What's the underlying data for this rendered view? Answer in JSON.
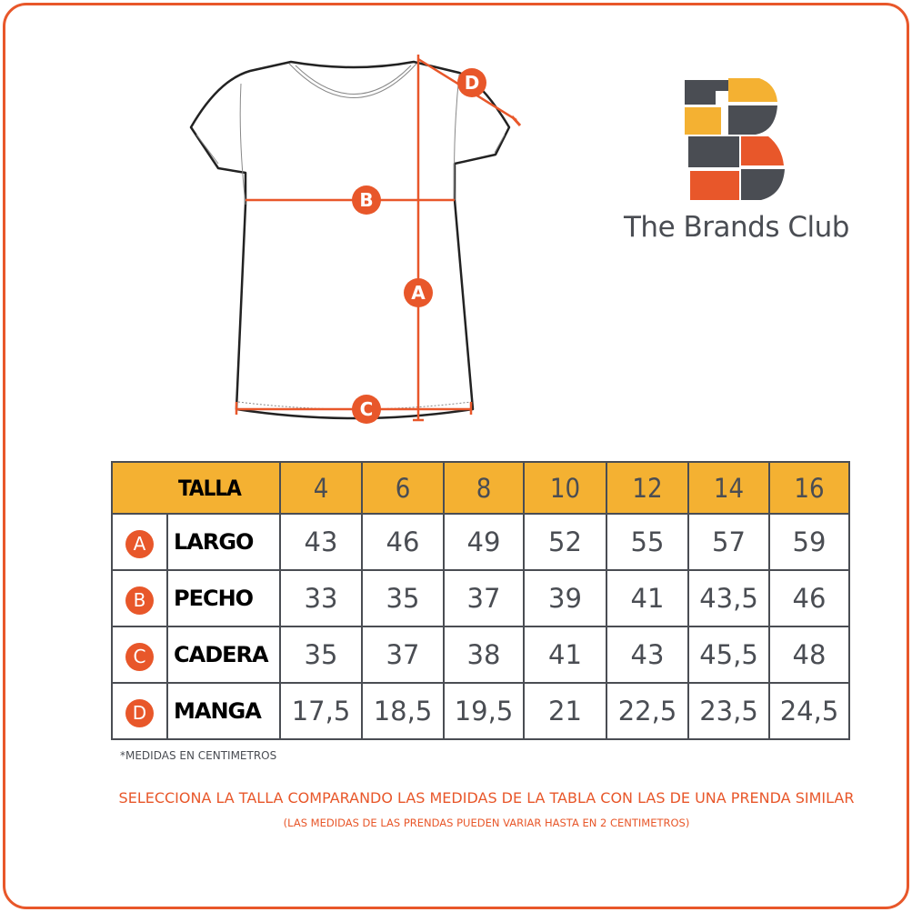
{
  "brand": {
    "name": "The Brands Club",
    "colors": {
      "orange": "#e8572a",
      "yellow": "#f4b132",
      "gray": "#4a4d53"
    }
  },
  "diagram": {
    "markers": [
      "A",
      "B",
      "C",
      "D"
    ]
  },
  "table": {
    "header_label": "TALLA",
    "sizes": [
      "4",
      "6",
      "8",
      "10",
      "12",
      "14",
      "16"
    ],
    "rows": [
      {
        "letter": "A",
        "label": "LARGO",
        "values": [
          "43",
          "46",
          "49",
          "52",
          "55",
          "57",
          "59"
        ]
      },
      {
        "letter": "B",
        "label": "PECHO",
        "values": [
          "33",
          "35",
          "37",
          "39",
          "41",
          "43,5",
          "46"
        ]
      },
      {
        "letter": "C",
        "label": "CADERA",
        "values": [
          "35",
          "37",
          "38",
          "41",
          "43",
          "45,5",
          "48"
        ]
      },
      {
        "letter": "D",
        "label": "MANGA",
        "values": [
          "17,5",
          "18,5",
          "19,5",
          "21",
          "22,5",
          "23,5",
          "24,5"
        ]
      }
    ]
  },
  "footer": {
    "note": "*MEDIDAS EN CENTIMETROS",
    "instruction": "SELECCIONA LA TALLA COMPARANDO LAS MEDIDAS DE LA TABLA CON LAS DE UNA PRENDA SIMILAR",
    "disclaimer": "(LAS MEDIDAS DE LAS PRENDAS PUEDEN VARIAR HASTA EN 2 CENTIMETROS)"
  }
}
